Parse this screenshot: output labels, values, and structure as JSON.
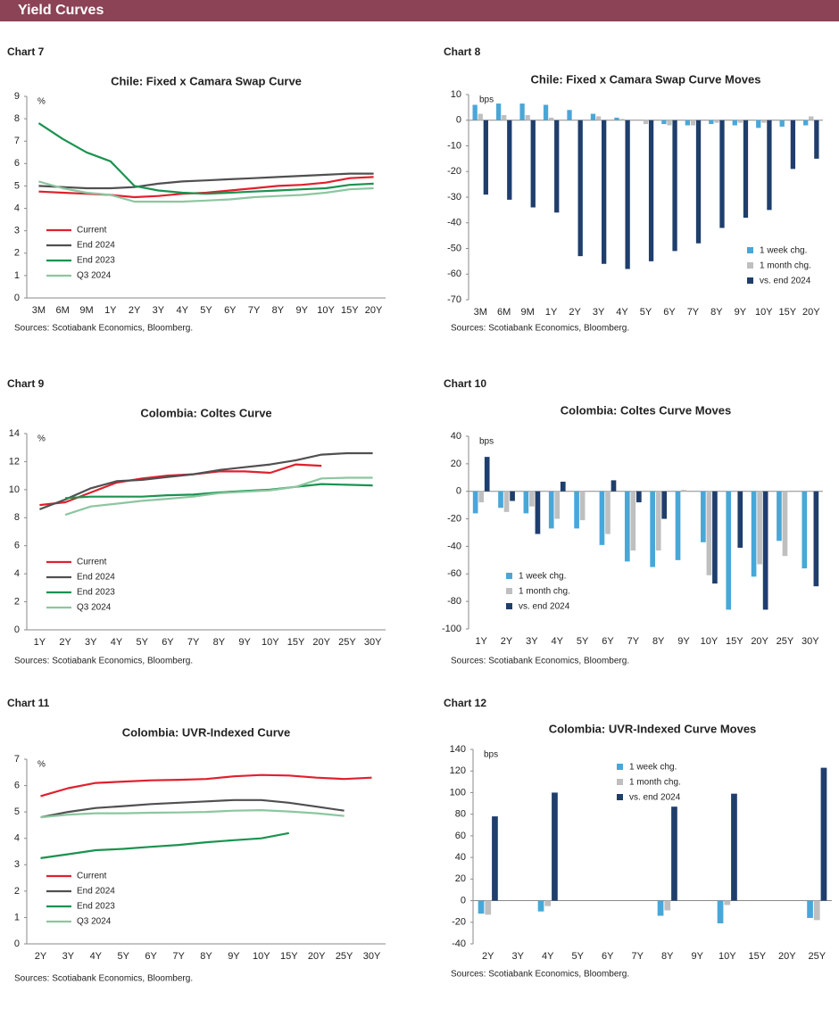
{
  "header": {
    "title": "Yield Curves"
  },
  "chart_data": [
    {
      "type": "line",
      "chart_label": "Chart 7",
      "title": "Chile: Fixed x Camara Swap Curve",
      "unit": "%",
      "categories": [
        "3M",
        "6M",
        "9M",
        "1Y",
        "2Y",
        "3Y",
        "4Y",
        "5Y",
        "6Y",
        "7Y",
        "8Y",
        "9Y",
        "10Y",
        "15Y",
        "20Y"
      ],
      "series": [
        {
          "name": "Current",
          "color": "#e0202e",
          "values": [
            4.75,
            4.7,
            4.65,
            4.6,
            4.5,
            4.55,
            4.65,
            4.7,
            4.8,
            4.9,
            5.0,
            5.05,
            5.15,
            5.35,
            5.4
          ]
        },
        {
          "name": "End 2024",
          "color": "#505050",
          "values": [
            5.0,
            4.95,
            4.9,
            4.9,
            4.95,
            5.1,
            5.2,
            5.25,
            5.3,
            5.35,
            5.4,
            5.45,
            5.5,
            5.55,
            5.55
          ]
        },
        {
          "name": "End 2023",
          "color": "#1a9350",
          "values": [
            7.8,
            7.1,
            6.5,
            6.1,
            5.0,
            4.8,
            4.7,
            4.65,
            4.7,
            4.75,
            4.8,
            4.85,
            4.9,
            5.05,
            5.1
          ]
        },
        {
          "name": "Q3 2024",
          "color": "#8cc6a0",
          "values": [
            5.2,
            4.9,
            4.7,
            4.6,
            4.3,
            4.3,
            4.3,
            4.35,
            4.4,
            4.5,
            4.55,
            4.6,
            4.7,
            4.85,
            4.9
          ]
        }
      ],
      "ylim": [
        0,
        9
      ],
      "yticks": [
        0,
        1,
        2,
        3,
        4,
        5,
        6,
        7,
        8,
        9
      ],
      "legend": "lower left",
      "source": "Sources:  Scotiabank  Economics,  Bloomberg."
    },
    {
      "type": "bar",
      "chart_label": "Chart 8",
      "title": "Chile: Fixed x Camara Swap Curve Moves",
      "unit": "bps",
      "categories": [
        "3M",
        "6M",
        "9M",
        "1Y",
        "2Y",
        "3Y",
        "4Y",
        "5Y",
        "6Y",
        "7Y",
        "8Y",
        "9Y",
        "10Y",
        "15Y",
        "20Y"
      ],
      "series": [
        {
          "name": "1 week chg.",
          "color": "#49a7d8",
          "values": [
            6,
            6.5,
            6.5,
            6,
            4,
            2.5,
            1,
            0,
            -1.5,
            -2,
            -1.5,
            -2,
            -3,
            -2.5,
            -2
          ]
        },
        {
          "name": "1 month chg.",
          "color": "#bfbfbf",
          "values": [
            2.5,
            2,
            2,
            1,
            0,
            1.5,
            0.5,
            -1.5,
            -2,
            -2,
            -1,
            -1,
            -1,
            0,
            1.5
          ]
        },
        {
          "name": "vs. end 2024",
          "color": "#1f3e6c",
          "values": [
            -29,
            -31,
            -34,
            -36,
            -53,
            -56,
            -58,
            -55,
            -51,
            -48,
            -42,
            -38,
            -35,
            -19,
            -15
          ]
        }
      ],
      "ylim": [
        -70,
        10
      ],
      "yticks": [
        -70,
        -60,
        -50,
        -40,
        -30,
        -20,
        -10,
        0,
        10
      ],
      "legend": "lower right",
      "source": "Sources:  Scotiabank  Economics,  Bloomberg."
    },
    {
      "type": "line",
      "chart_label": "Chart 9",
      "title": "Colombia: Coltes Curve",
      "unit": "%",
      "categories": [
        "1Y",
        "2Y",
        "3Y",
        "4Y",
        "5Y",
        "6Y",
        "7Y",
        "8Y",
        "9Y",
        "10Y",
        "15Y",
        "20Y",
        "25Y",
        "30Y"
      ],
      "series": [
        {
          "name": "Current",
          "color": "#e0202e",
          "values": [
            8.9,
            9.1,
            9.8,
            10.5,
            10.8,
            11.0,
            11.1,
            11.3,
            11.3,
            11.2,
            11.8,
            11.7,
            null,
            null
          ]
        },
        {
          "name": "End 2024",
          "color": "#505050",
          "values": [
            8.6,
            9.3,
            10.1,
            10.6,
            10.7,
            10.9,
            11.1,
            11.4,
            11.6,
            11.8,
            12.1,
            12.5,
            12.6,
            12.6
          ]
        },
        {
          "name": "End 2023",
          "color": "#1a9350",
          "values": [
            null,
            9.4,
            9.5,
            9.5,
            9.5,
            9.6,
            9.65,
            9.8,
            9.9,
            10.0,
            10.2,
            10.4,
            10.35,
            10.3
          ]
        },
        {
          "name": "Q3 2024",
          "color": "#8cc6a0",
          "values": [
            null,
            8.2,
            8.8,
            9.0,
            9.2,
            9.35,
            9.5,
            9.75,
            9.85,
            9.95,
            10.2,
            10.8,
            10.85,
            10.85
          ]
        }
      ],
      "ylim": [
        0,
        14
      ],
      "yticks": [
        0,
        2,
        4,
        6,
        8,
        10,
        12,
        14
      ],
      "legend": "lower left",
      "source": "Sources:  Scotiabank  Economics,  Bloomberg."
    },
    {
      "type": "bar",
      "chart_label": "Chart 10",
      "title": "Colombia: Coltes Curve Moves",
      "unit": "bps",
      "categories": [
        "1Y",
        "2Y",
        "3Y",
        "4Y",
        "5Y",
        "6Y",
        "7Y",
        "8Y",
        "9Y",
        "10Y",
        "15Y",
        "20Y",
        "25Y",
        "30Y"
      ],
      "series": [
        {
          "name": "1 week chg.",
          "color": "#49a7d8",
          "values": [
            -16,
            -12,
            -16,
            -27,
            -27,
            -39,
            -51,
            -55,
            -50,
            -37,
            -86,
            -62,
            -36,
            -56
          ]
        },
        {
          "name": "1 month chg.",
          "color": "#bfbfbf",
          "values": [
            -8,
            -15,
            -11,
            -20,
            -21,
            -31,
            -43,
            -43,
            1,
            -61,
            null,
            -53,
            -47,
            null
          ]
        },
        {
          "name": "vs. end 2024",
          "color": "#1f3e6c",
          "values": [
            25,
            -7,
            -31,
            7,
            null,
            8,
            -8,
            -20,
            null,
            -67,
            -41,
            -86,
            null,
            -69
          ]
        }
      ],
      "ylim": [
        -100,
        40
      ],
      "yticks": [
        -100,
        -80,
        -60,
        -40,
        -20,
        0,
        20,
        40
      ],
      "legend": "lower left",
      "source": "Sources:  Scotiabank  Economics,  Bloomberg."
    },
    {
      "type": "line",
      "chart_label": "Chart 11",
      "title": "Colombia: UVR-Indexed Curve",
      "unit": "%",
      "categories": [
        "2Y",
        "3Y",
        "4Y",
        "5Y",
        "6Y",
        "7Y",
        "8Y",
        "9Y",
        "10Y",
        "15Y",
        "20Y",
        "25Y",
        "30Y"
      ],
      "series": [
        {
          "name": "Current",
          "color": "#e0202e",
          "values": [
            5.6,
            5.9,
            6.1,
            6.15,
            6.2,
            6.22,
            6.25,
            6.35,
            6.4,
            6.38,
            6.3,
            6.25,
            6.3
          ]
        },
        {
          "name": "End 2024",
          "color": "#505050",
          "values": [
            4.8,
            5.0,
            5.15,
            5.22,
            5.3,
            5.35,
            5.4,
            5.45,
            5.45,
            5.35,
            5.2,
            5.05,
            null
          ]
        },
        {
          "name": "End 2023",
          "color": "#1a9350",
          "values": [
            3.25,
            3.4,
            3.55,
            3.6,
            3.68,
            3.75,
            3.85,
            3.93,
            4.0,
            4.2,
            null,
            null,
            null
          ]
        },
        {
          "name": "Q3 2024",
          "color": "#8cc6a0",
          "values": [
            4.8,
            4.9,
            4.95,
            4.95,
            4.97,
            4.98,
            5.0,
            5.05,
            5.07,
            5.02,
            4.95,
            4.85,
            null
          ]
        }
      ],
      "ylim": [
        0,
        7
      ],
      "yticks": [
        0,
        1,
        2,
        3,
        4,
        5,
        6,
        7
      ],
      "legend": "lower left",
      "source": "Sources:  Scotiabank  Economics,  Bloomberg."
    },
    {
      "type": "bar",
      "chart_label": "Chart 12",
      "title": "Colombia: UVR-Indexed Curve Moves",
      "unit": "bps",
      "categories": [
        "2Y",
        "3Y",
        "4Y",
        "5Y",
        "6Y",
        "7Y",
        "8Y",
        "9Y",
        "10Y",
        "15Y",
        "20Y",
        "25Y"
      ],
      "series": [
        {
          "name": "1 week chg.",
          "color": "#49a7d8",
          "values": [
            -12,
            null,
            -10,
            null,
            null,
            null,
            -14,
            null,
            -21,
            null,
            null,
            -16
          ]
        },
        {
          "name": "1 month chg.",
          "color": "#bfbfbf",
          "values": [
            -13,
            null,
            -5,
            null,
            null,
            null,
            -9,
            null,
            -4,
            null,
            null,
            -18
          ]
        },
        {
          "name": "vs. end 2024",
          "color": "#1f3e6c",
          "values": [
            78,
            null,
            100,
            null,
            null,
            null,
            87,
            null,
            99,
            null,
            null,
            123
          ]
        }
      ],
      "ylim": [
        -40,
        140
      ],
      "yticks": [
        -40,
        -20,
        0,
        20,
        40,
        60,
        80,
        100,
        120,
        140
      ],
      "legend": "upper center",
      "source": "Sources:  Scotiabank  Economics,  Bloomberg."
    }
  ]
}
